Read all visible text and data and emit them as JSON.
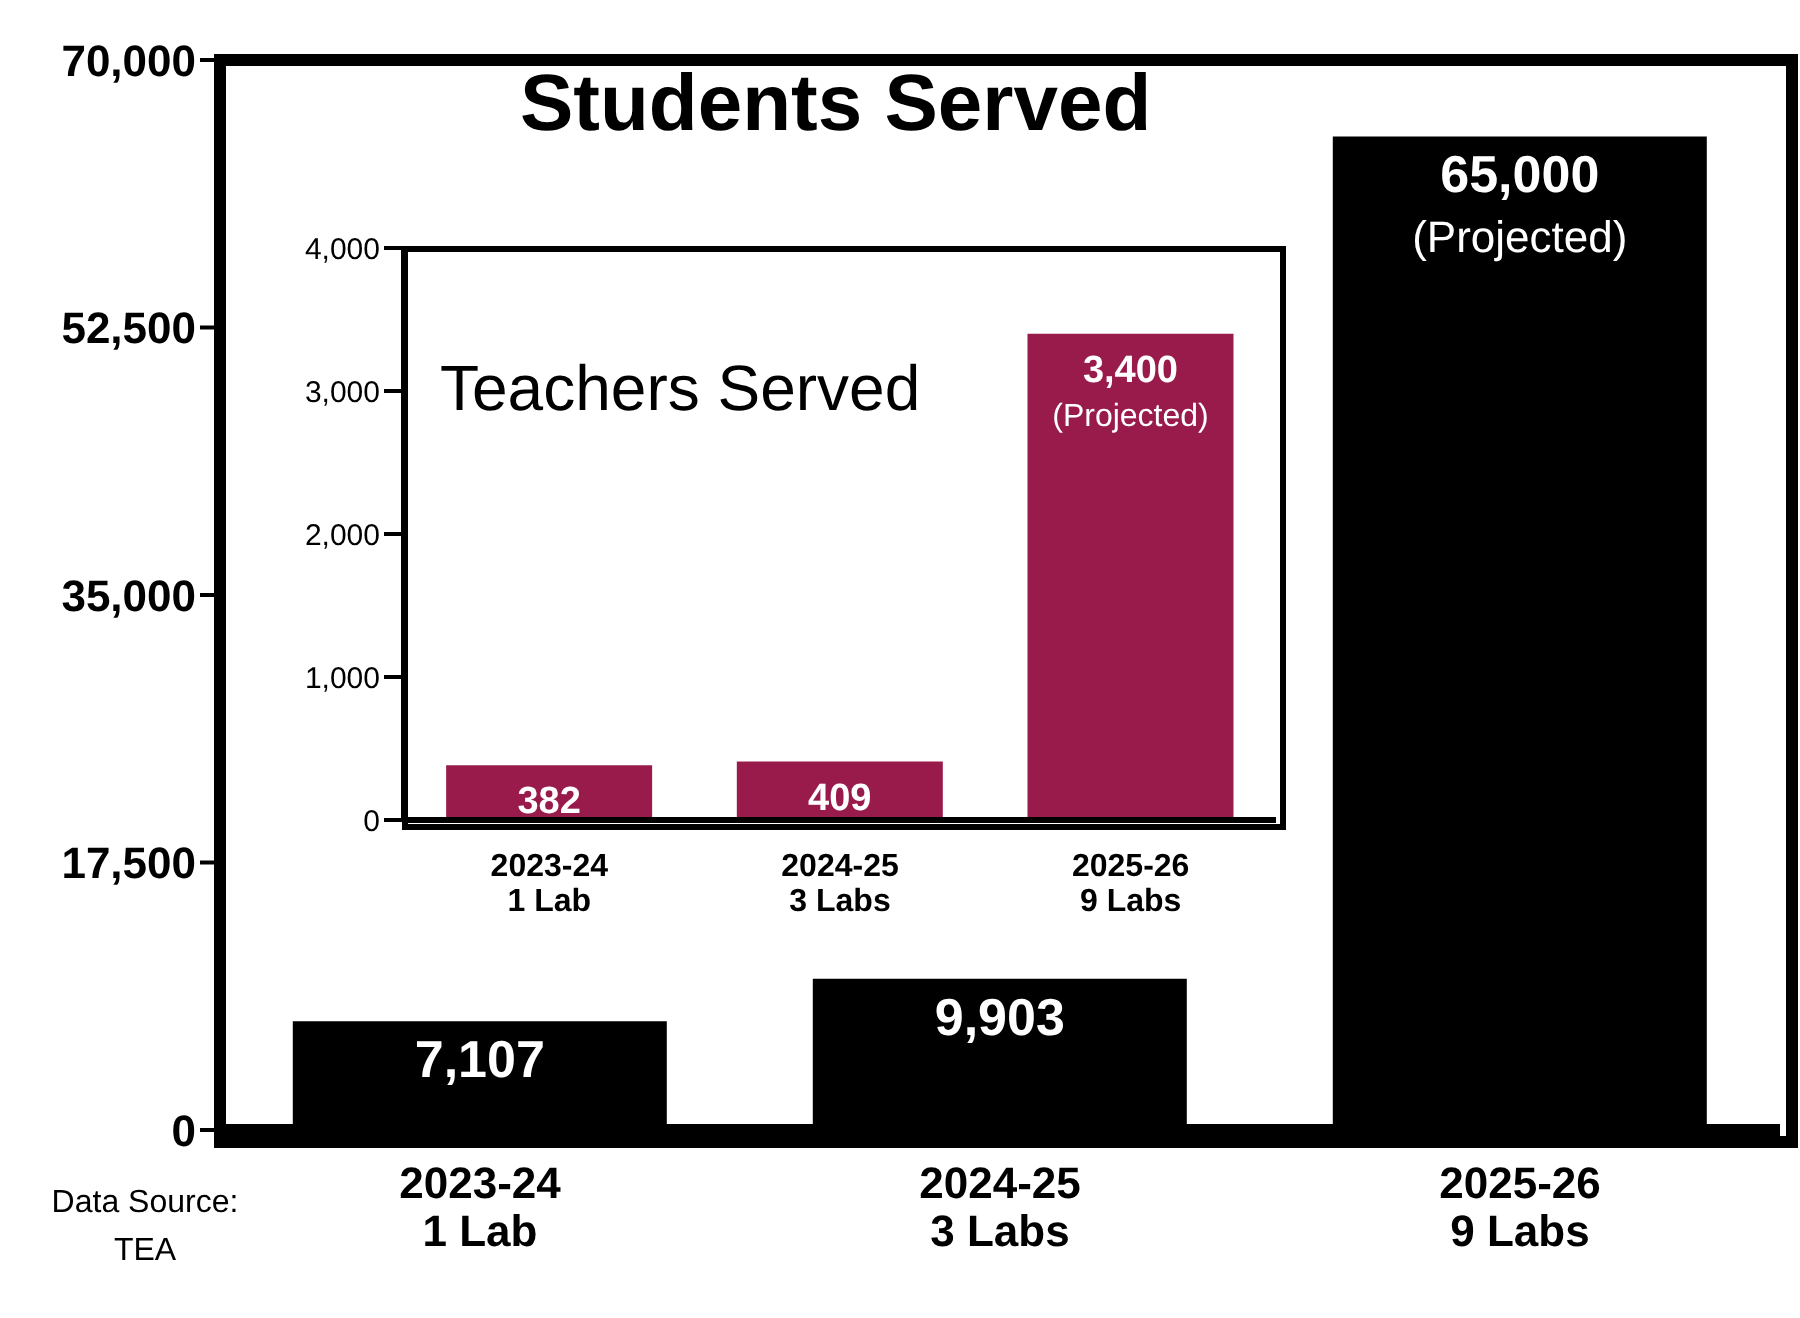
{
  "chart_data": [
    {
      "type": "bar",
      "title": "Students Served",
      "categories": [
        "2023-24\n1 Lab",
        "2024-25\n3 Labs",
        "2025-26\n9 Labs"
      ],
      "values": [
        7107,
        9903,
        65000
      ],
      "color": "#000000",
      "ylim": [
        0,
        70000
      ],
      "yticks": [
        0,
        {
          "value": 17500,
          "label": "17,500"
        },
        {
          "value": 35000,
          "label": "35,000"
        },
        {
          "value": 52500,
          "label": "52,500"
        },
        {
          "value": 70000,
          "label": "70,000"
        }
      ],
      "value_labels": [
        "7,107",
        "9,903",
        "65,000\n(Projected)"
      ],
      "annotations": [
        "Data Source:\nTEA"
      ]
    },
    {
      "type": "bar",
      "title": "Teachers Served",
      "categories": [
        "2023-24\n1 Lab",
        "2024-25\n3 Labs",
        "2025-26\n9 Labs"
      ],
      "values": [
        382,
        409,
        3400
      ],
      "color": "#981b4c",
      "ylim": [
        0,
        4000
      ],
      "yticks": [
        0,
        {
          "value": 1000,
          "label": "1,000"
        },
        {
          "value": 2000,
          "label": "2,000"
        },
        {
          "value": 3000,
          "label": "3,000"
        },
        {
          "value": 4000,
          "label": "4,000"
        }
      ],
      "value_labels": [
        "382",
        "409",
        "3,400\n(Projected)"
      ]
    }
  ]
}
